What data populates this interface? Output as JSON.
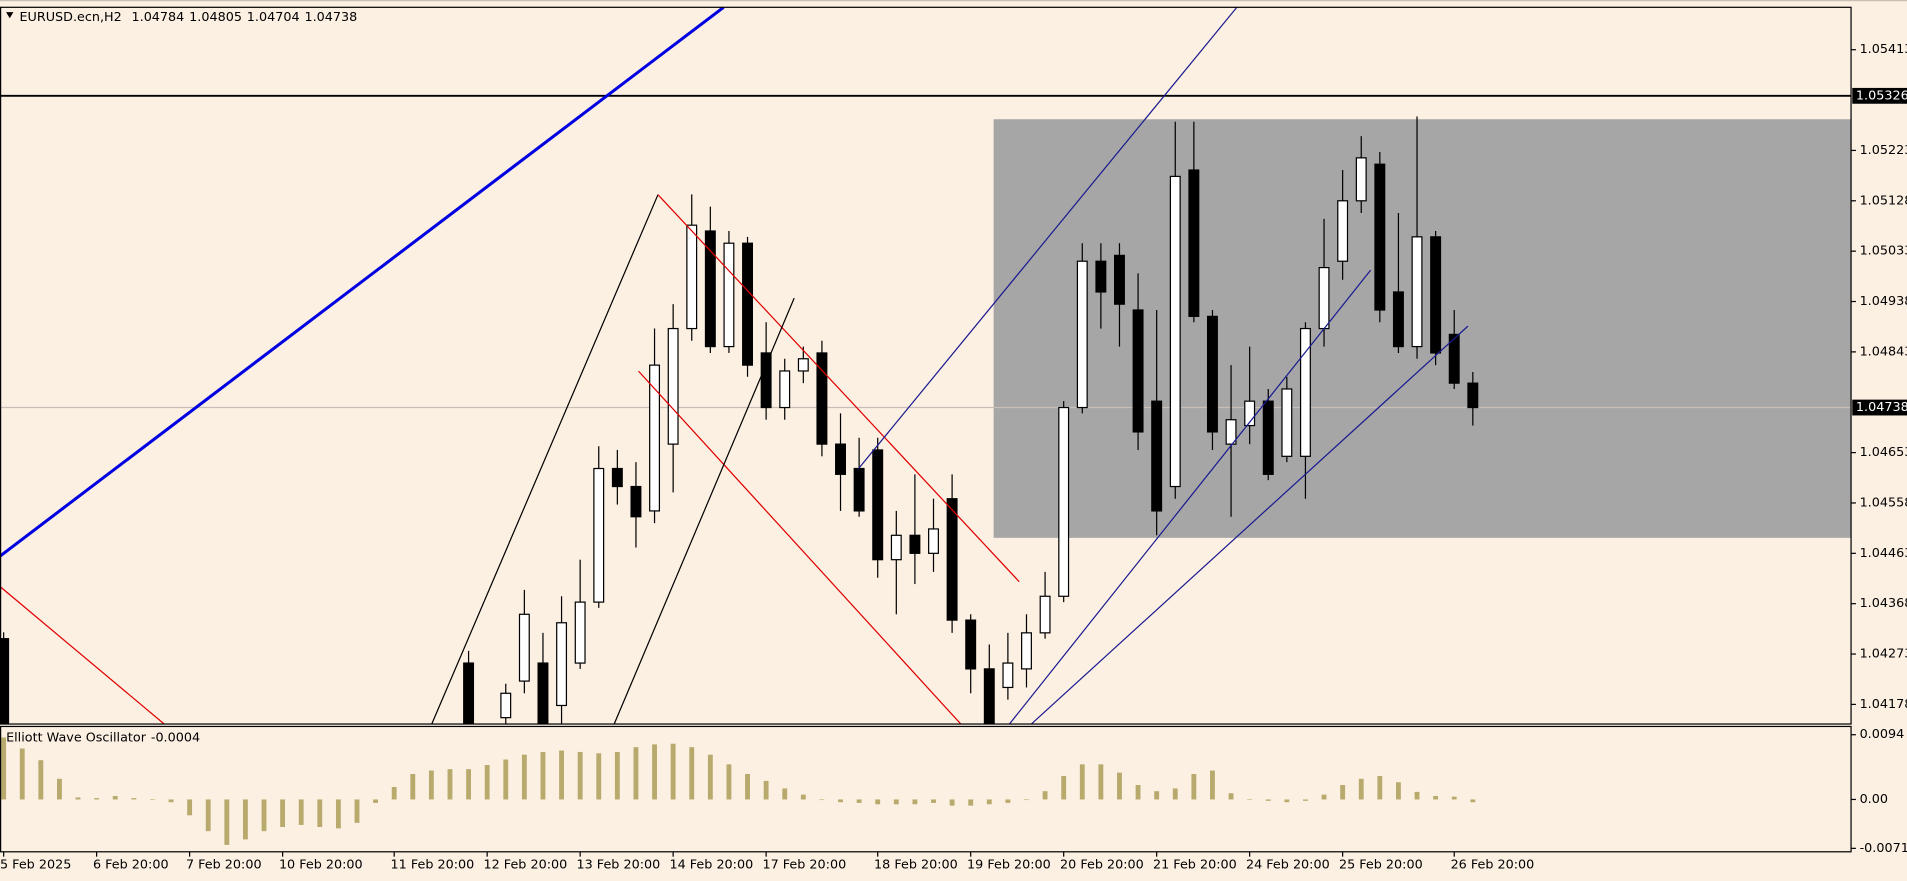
{
  "chart_data": {
    "type": "candlestick",
    "title": "EURUSD.ecn,H2",
    "categories": [
      "5 Feb 2025",
      null,
      null,
      null,
      null,
      "6 Feb 20:00",
      null,
      null,
      null,
      null,
      "7 Feb 20:00",
      null,
      null,
      null,
      null,
      "10 Feb 20:00",
      null,
      null,
      null,
      null,
      null,
      "11 Feb 20:00",
      null,
      null,
      null,
      null,
      "12 Feb 20:00",
      null,
      null,
      null,
      null,
      "13 Feb 20:00",
      null,
      null,
      null,
      null,
      "14 Feb 20:00",
      null,
      null,
      null,
      null,
      "17 Feb 20:00",
      null,
      null,
      null,
      null,
      null,
      "18 Feb 20:00",
      null,
      null,
      null,
      null,
      "19 Feb 20:00",
      null,
      null,
      null,
      null,
      "20 Feb 20:00",
      null,
      null,
      null,
      null,
      "21 Feb 20:00",
      null,
      null,
      null,
      null,
      "24 Feb 20:00",
      null,
      null,
      null,
      null,
      "25 Feb 20:00",
      null,
      null,
      null,
      null,
      null,
      "26 Feb 20:00",
      null
    ],
    "open": [
      1.04302,
      null,
      null,
      null,
      null,
      null,
      null,
      null,
      null,
      null,
      null,
      null,
      null,
      null,
      null,
      null,
      null,
      null,
      null,
      null,
      null,
      null,
      null,
      null,
      null,
      1.04256,
      null,
      1.04153,
      1.04222,
      1.04256,
      1.04176,
      1.04256,
      1.04371,
      1.04623,
      1.04589,
      1.04543,
      1.04669,
      1.04887,
      1.05071,
      1.04853,
      1.05048,
      1.04841,
      1.04738,
      1.04807,
      1.04841,
      1.04669,
      1.04623,
      1.04658,
      1.04451,
      1.04497,
      1.04463,
      1.04566,
      1.04337,
      1.04245,
      1.0421,
      1.04245,
      1.04313,
      1.04382,
      1.04738,
      1.05014,
      1.05025,
      1.04922,
      1.0475,
      1.04589,
      1.05186,
      1.0491,
      1.04669,
      1.04704,
      1.0475,
      1.04646,
      1.04646,
      1.04887,
      1.05014,
      1.05128,
      1.05197,
      1.04956,
      1.04853,
      1.0506,
      1.04876,
      1.04784
    ],
    "high": [
      1.04314,
      null,
      null,
      null,
      null,
      null,
      null,
      null,
      null,
      null,
      null,
      null,
      null,
      null,
      null,
      null,
      null,
      null,
      null,
      null,
      null,
      null,
      null,
      null,
      null,
      1.04279,
      null,
      1.04217,
      1.04394,
      1.04313,
      1.04382,
      1.04451,
      1.04665,
      1.04658,
      1.04635,
      1.04887,
      1.04933,
      1.0514,
      1.05117,
      1.05071,
      1.0506,
      1.04899,
      1.0483,
      1.04853,
      1.04864,
      1.04727,
      1.04681,
      1.04681,
      1.04543,
      1.04612,
      1.04566,
      1.04612,
      1.04348,
      1.04291,
      1.04313,
      1.04348,
      1.04428,
      1.0475,
      1.05048,
      1.05048,
      1.05048,
      1.04991,
      1.04922,
      1.05277,
      1.05277,
      1.04922,
      1.04818,
      1.04853,
      1.04773,
      1.04796,
      1.04899,
      1.05094,
      1.05186,
      1.0525,
      1.0522,
      1.05105,
      1.05287,
      1.05071,
      1.04922,
      1.04805
    ],
    "low": [
      1.0412,
      null,
      null,
      null,
      null,
      null,
      null,
      null,
      null,
      null,
      null,
      null,
      null,
      null,
      null,
      null,
      null,
      null,
      null,
      null,
      null,
      null,
      null,
      null,
      null,
      1.0413,
      null,
      1.0413,
      1.04199,
      1.0413,
      1.04142,
      1.04245,
      1.0436,
      1.04555,
      1.04474,
      1.0452,
      1.04578,
      1.04864,
      1.04841,
      1.04841,
      1.04796,
      1.04715,
      1.04715,
      1.04784,
      1.04646,
      1.04543,
      1.04532,
      1.04417,
      1.04348,
      1.04405,
      1.04428,
      1.04313,
      1.04199,
      1.0413,
      1.04187,
      1.0421,
      1.04302,
      1.04371,
      1.04727,
      1.04887,
      1.04853,
      1.04658,
      1.04497,
      1.04566,
      1.04899,
      1.04658,
      1.04532,
      1.04669,
      1.04601,
      1.04635,
      1.04566,
      1.04853,
      1.04979,
      1.05105,
      1.04899,
      1.04841,
      1.0483,
      1.04818,
      1.04773,
      1.04704
    ],
    "close": [
      1.0413,
      null,
      null,
      null,
      null,
      null,
      null,
      null,
      null,
      null,
      null,
      null,
      null,
      null,
      null,
      null,
      null,
      null,
      null,
      null,
      null,
      null,
      null,
      null,
      null,
      1.04142,
      null,
      1.04199,
      1.04348,
      1.04142,
      1.04332,
      1.04371,
      1.04623,
      1.04589,
      1.04532,
      1.04818,
      1.04887,
      1.05082,
      1.04853,
      1.05048,
      1.04818,
      1.04738,
      1.04807,
      1.0483,
      1.04669,
      1.04612,
      1.04543,
      1.04451,
      1.04497,
      1.04463,
      1.04509,
      1.04337,
      1.04245,
      1.04142,
      1.04256,
      1.04313,
      1.04382,
      1.04738,
      1.05014,
      1.04956,
      1.04933,
      1.04692,
      1.04543,
      1.05174,
      1.0491,
      1.04692,
      1.04715,
      1.0475,
      1.04612,
      1.04773,
      1.04887,
      1.05002,
      1.05128,
      1.05209,
      1.04922,
      1.04853,
      1.0506,
      1.04841,
      1.04784,
      1.04738
    ],
    "ylim": [
      1.04141,
      1.05493
    ],
    "yticks": [
      1.05413,
      1.05223,
      1.05128,
      1.05033,
      1.04938,
      1.04843,
      1.04653,
      1.04558,
      1.04463,
      1.04368,
      1.04273,
      1.04178
    ],
    "hline": 1.05326,
    "indicator": {
      "title": "Elliott Wave Oscillator",
      "color": "#b8aa6c",
      "values": [
        0.009,
        0.0074,
        0.0057,
        0.003,
        0.0003,
        0.0002,
        0.0005,
        0.0002,
        0,
        -0.0004,
        -0.0023,
        -0.0046,
        -0.0066,
        -0.0058,
        -0.0046,
        -0.004,
        -0.0037,
        -0.004,
        -0.0042,
        -0.0034,
        -0.0005,
        0.0018,
        0.0037,
        0.0042,
        0.0044,
        0.0044,
        0.005,
        0.0058,
        0.0065,
        0.0069,
        0.0071,
        0.0069,
        0.0067,
        0.0069,
        0.0076,
        0.008,
        0.0081,
        0.0076,
        0.0065,
        0.0051,
        0.0037,
        0.0027,
        0.0016,
        0.0007,
        0,
        -0.0004,
        -0.0005,
        -0.0007,
        -0.0007,
        -0.0007,
        -0.0005,
        -0.0009,
        -0.0009,
        -0.0007,
        -0.0005,
        0,
        0.0012,
        0.0034,
        0.0051,
        0.0051,
        0.0039,
        0.0021,
        0.0012,
        0.0016,
        0.0037,
        0.0042,
        0.0009,
        0,
        -0.0002,
        -0.0004,
        -0.0002,
        0.0007,
        0.0021,
        0.003,
        0.0034,
        0.0025,
        0.0011,
        0.0005,
        0.0004,
        -0.0004
      ],
      "ylim": [
        -0.0076,
        0.0106
      ],
      "yticks": [
        0.0094,
        {
          "value": 0,
          "label": "0.00"
        },
        -0.0071
      ]
    }
  }
}
